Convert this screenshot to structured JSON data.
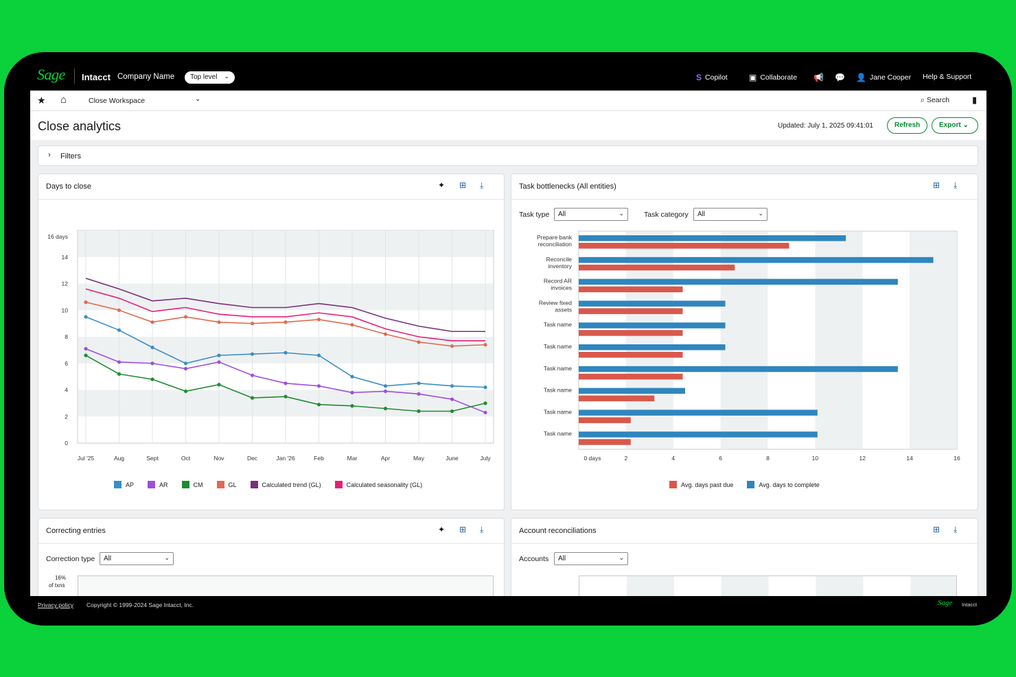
{
  "topbar": {
    "brand": "Sage",
    "product": "Intacct",
    "company": "Company Name",
    "level": "Top level",
    "copilot": "Copilot",
    "collaborate": "Collaborate",
    "user": "Jane Cooper",
    "help": "Help & Support"
  },
  "nav": {
    "workspace": "Close Workspace",
    "search": "Search"
  },
  "header": {
    "title": "Close analytics",
    "updated": "Updated: July 1, 2025  09:41:01",
    "refresh": "Refresh",
    "export": "Export"
  },
  "filters": {
    "label": "Filters"
  },
  "days_card": {
    "title": "Days to close"
  },
  "bottleneck_card": {
    "title": "Task bottlenecks (All entities)",
    "task_type_label": "Task type",
    "task_type_value": "All",
    "task_category_label": "Task category",
    "task_category_value": "All"
  },
  "correcting_card": {
    "title": "Correcting entries",
    "correction_label": "Correction type",
    "correction_value": "All",
    "y_top_1": "16%",
    "y_top_2": "of txns"
  },
  "recon_card": {
    "title": "Account reconciliations",
    "accounts_label": "Accounts",
    "accounts_value": "All"
  },
  "footer": {
    "privacy": "Privacy policy",
    "copyright": "Copyright © 1999-2024 Sage Intacct, Inc.",
    "brand": "Sage",
    "product": "Intacct"
  },
  "chart_data": [
    {
      "type": "line",
      "ylabel_top": "16 days",
      "ylim": [
        0,
        16
      ],
      "yticks": [
        "0",
        "2",
        "4",
        "6",
        "8",
        "10",
        "12",
        "14"
      ],
      "x": [
        "Jul '25",
        "Aug",
        "Sept",
        "Oct",
        "Nov",
        "Dec",
        "Jan '26",
        "Feb",
        "Mar",
        "Apr",
        "May",
        "June",
        "July"
      ],
      "series": [
        {
          "name": "AP",
          "color": "#3a8ec4",
          "markers": true,
          "values": [
            9.5,
            8.5,
            7.2,
            6.0,
            6.6,
            6.7,
            6.8,
            6.6,
            5.0,
            4.3,
            4.5,
            4.3,
            4.2
          ]
        },
        {
          "name": "AR",
          "color": "#9b4fe0",
          "markers": true,
          "values": [
            7.1,
            6.1,
            6.0,
            5.6,
            6.1,
            5.1,
            4.5,
            4.3,
            3.8,
            3.9,
            3.7,
            3.3,
            2.3
          ]
        },
        {
          "name": "CM",
          "color": "#1e8c32",
          "markers": true,
          "values": [
            6.6,
            5.2,
            4.8,
            3.9,
            4.4,
            3.4,
            3.5,
            2.9,
            2.8,
            2.6,
            2.4,
            2.4,
            3.0
          ]
        },
        {
          "name": "GL",
          "color": "#e06a4e",
          "markers": true,
          "values": [
            10.6,
            10.0,
            9.1,
            9.5,
            9.1,
            9.0,
            9.1,
            9.3,
            8.9,
            8.2,
            7.6,
            7.3,
            7.4
          ]
        },
        {
          "name": "Calculated trend (GL)",
          "color": "#7a2f7a",
          "markers": false,
          "values": [
            12.4,
            11.6,
            10.7,
            10.9,
            10.5,
            10.2,
            10.2,
            10.5,
            10.2,
            9.4,
            8.8,
            8.4,
            8.4
          ]
        },
        {
          "name": "Calculated seasonality (GL)",
          "color": "#e81e78",
          "markers": false,
          "values": [
            11.6,
            10.9,
            9.9,
            10.2,
            9.7,
            9.5,
            9.5,
            9.8,
            9.5,
            8.6,
            8.0,
            7.7,
            7.7
          ]
        }
      ],
      "legend": "bottom"
    },
    {
      "type": "bar",
      "orientation": "horizontal",
      "xlabel_first": "0 days",
      "xlim": [
        0,
        16
      ],
      "xticks": [
        "2",
        "4",
        "6",
        "8",
        "10",
        "12",
        "14",
        "16"
      ],
      "categories": [
        [
          "Prepare bank",
          "reconciliation"
        ],
        [
          "Reconcile",
          "inventory"
        ],
        [
          "Record AR",
          "invoices"
        ],
        [
          "Review fixed",
          "assets"
        ],
        [
          "Task name"
        ],
        [
          "Task name"
        ],
        [
          "Task name"
        ],
        [
          "Task name"
        ],
        [
          "Task name"
        ],
        [
          "Task name"
        ]
      ],
      "series": [
        {
          "name": "Avg. days to complete",
          "color": "#2f86be",
          "values": [
            11.3,
            15.0,
            13.5,
            6.2,
            6.2,
            6.2,
            13.5,
            4.5,
            10.1,
            10.1
          ]
        },
        {
          "name": "Avg. days past due",
          "color": "#d9584c",
          "values": [
            8.9,
            6.6,
            4.4,
            4.4,
            4.4,
            4.4,
            4.4,
            3.2,
            2.2,
            2.2
          ]
        }
      ],
      "legend_order": [
        "Avg. days past due",
        "Avg. days to complete"
      ],
      "legend": "bottom"
    }
  ]
}
